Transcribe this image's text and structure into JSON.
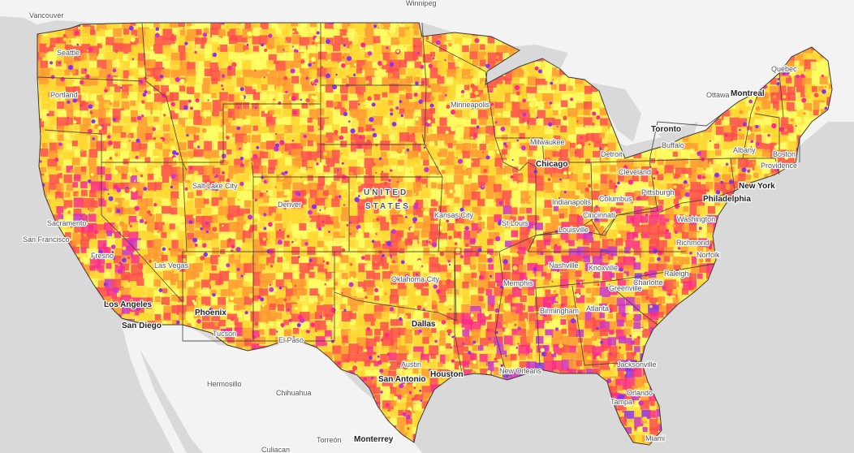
{
  "country_label": [
    "UNITED",
    "STATES"
  ],
  "colors": {
    "water": "#d9d9d9",
    "land_other": "#f3f3f3",
    "base_fill": "#ffe64d",
    "state_border": "#3b3b3b",
    "palette": [
      "#ffff66",
      "#ffd633",
      "#ff9933",
      "#ff4d4d",
      "#ff2a8a",
      "#cc33cc",
      "#8833ee"
    ]
  },
  "cities_us": [
    {
      "key": "seattle",
      "name": "Seattle",
      "size": "small"
    },
    {
      "key": "portland",
      "name": "Portland",
      "size": "small"
    },
    {
      "key": "sacramento",
      "name": "Sacramento",
      "size": "small"
    },
    {
      "key": "sanfrancisco",
      "name": "San Francisco",
      "size": "small"
    },
    {
      "key": "fresno",
      "name": "Fresno",
      "size": "small"
    },
    {
      "key": "losangeles",
      "name": "Los Angeles",
      "size": "big"
    },
    {
      "key": "sandiego",
      "name": "San Diego",
      "size": "big"
    },
    {
      "key": "lasvegas",
      "name": "Las Vegas",
      "size": "small"
    },
    {
      "key": "saltlake",
      "name": "Salt Lake City",
      "size": "small"
    },
    {
      "key": "phoenix",
      "name": "Phoenix",
      "size": "big"
    },
    {
      "key": "tucson",
      "name": "Tucson",
      "size": "small"
    },
    {
      "key": "elpaso",
      "name": "El Paso",
      "size": "small"
    },
    {
      "key": "denver",
      "name": "Denver",
      "size": "small"
    },
    {
      "key": "minneapolis",
      "name": "Minneapolis",
      "size": "small"
    },
    {
      "key": "milwaukee",
      "name": "Milwaukee",
      "size": "small"
    },
    {
      "key": "chicago",
      "name": "Chicago",
      "size": "big"
    },
    {
      "key": "detroit",
      "name": "Detroit",
      "size": "small"
    },
    {
      "key": "cleveland",
      "name": "Cleveland",
      "size": "small"
    },
    {
      "key": "pittsburgh",
      "name": "Pittsburgh",
      "size": "small"
    },
    {
      "key": "columbus",
      "name": "Columbus",
      "size": "small"
    },
    {
      "key": "indianapolis",
      "name": "Indianapolis",
      "size": "small"
    },
    {
      "key": "cincinnati",
      "name": "Cincinnati",
      "size": "small"
    },
    {
      "key": "louisville",
      "name": "Louisville",
      "size": "small"
    },
    {
      "key": "kansascity",
      "name": "Kansas City",
      "size": "small"
    },
    {
      "key": "stlouis",
      "name": "St Louis",
      "size": "small"
    },
    {
      "key": "oklahomacity",
      "name": "Oklahoma City",
      "size": "small"
    },
    {
      "key": "dallas",
      "name": "Dallas",
      "size": "big"
    },
    {
      "key": "austin",
      "name": "Austin",
      "size": "small"
    },
    {
      "key": "sanantonio",
      "name": "San Antonio",
      "size": "big"
    },
    {
      "key": "houston",
      "name": "Houston",
      "size": "big"
    },
    {
      "key": "neworleans",
      "name": "New Orleans",
      "size": "small"
    },
    {
      "key": "memphis",
      "name": "Memphis",
      "size": "small"
    },
    {
      "key": "nashville",
      "name": "Nashville",
      "size": "small"
    },
    {
      "key": "knoxville",
      "name": "Knoxville",
      "size": "small"
    },
    {
      "key": "birmingham",
      "name": "Birmingham",
      "size": "small"
    },
    {
      "key": "atlanta",
      "name": "Atlanta",
      "size": "small"
    },
    {
      "key": "greenville",
      "name": "Greenville",
      "size": "small"
    },
    {
      "key": "charlotte",
      "name": "Charlotte",
      "size": "small"
    },
    {
      "key": "raleigh",
      "name": "Raleigh",
      "size": "small"
    },
    {
      "key": "richmond",
      "name": "Richmond",
      "size": "small"
    },
    {
      "key": "norfolk",
      "name": "Norfolk",
      "size": "small"
    },
    {
      "key": "washington",
      "name": "Washington",
      "size": "small"
    },
    {
      "key": "philadelphia",
      "name": "Philadelphia",
      "size": "big"
    },
    {
      "key": "newyork",
      "name": "New York",
      "size": "big"
    },
    {
      "key": "albany",
      "name": "Albany",
      "size": "small"
    },
    {
      "key": "boston",
      "name": "Boston",
      "size": "small"
    },
    {
      "key": "providence",
      "name": "Providence",
      "size": "small"
    },
    {
      "key": "buffalo",
      "name": "Buffalo",
      "size": "small"
    },
    {
      "key": "jacksonville",
      "name": "Jacksonville",
      "size": "small"
    },
    {
      "key": "orlando",
      "name": "Orlando",
      "size": "small"
    },
    {
      "key": "tampa",
      "name": "Tampa",
      "size": "small"
    },
    {
      "key": "miami",
      "name": "Miami",
      "size": "small"
    }
  ],
  "cities_other": [
    {
      "key": "vancouver",
      "name": "Vancouver",
      "size": "small"
    },
    {
      "key": "winnipeg",
      "name": "Winnipeg",
      "size": "small"
    },
    {
      "key": "toronto",
      "name": "Toronto",
      "size": "big"
    },
    {
      "key": "ottawa",
      "name": "Ottawa",
      "size": "small"
    },
    {
      "key": "montreal",
      "name": "Montreal",
      "size": "big"
    },
    {
      "key": "quebec",
      "name": "Quebec",
      "size": "small"
    },
    {
      "key": "hermosillo",
      "name": "Hermosillo",
      "size": "small"
    },
    {
      "key": "chihuahua",
      "name": "Chihuahua",
      "size": "small"
    },
    {
      "key": "monterrey",
      "name": "Monterrey",
      "size": "big"
    },
    {
      "key": "torreon",
      "name": "Torreón",
      "size": "small"
    },
    {
      "key": "culiacan",
      "name": "Culiacan",
      "size": "small"
    }
  ]
}
